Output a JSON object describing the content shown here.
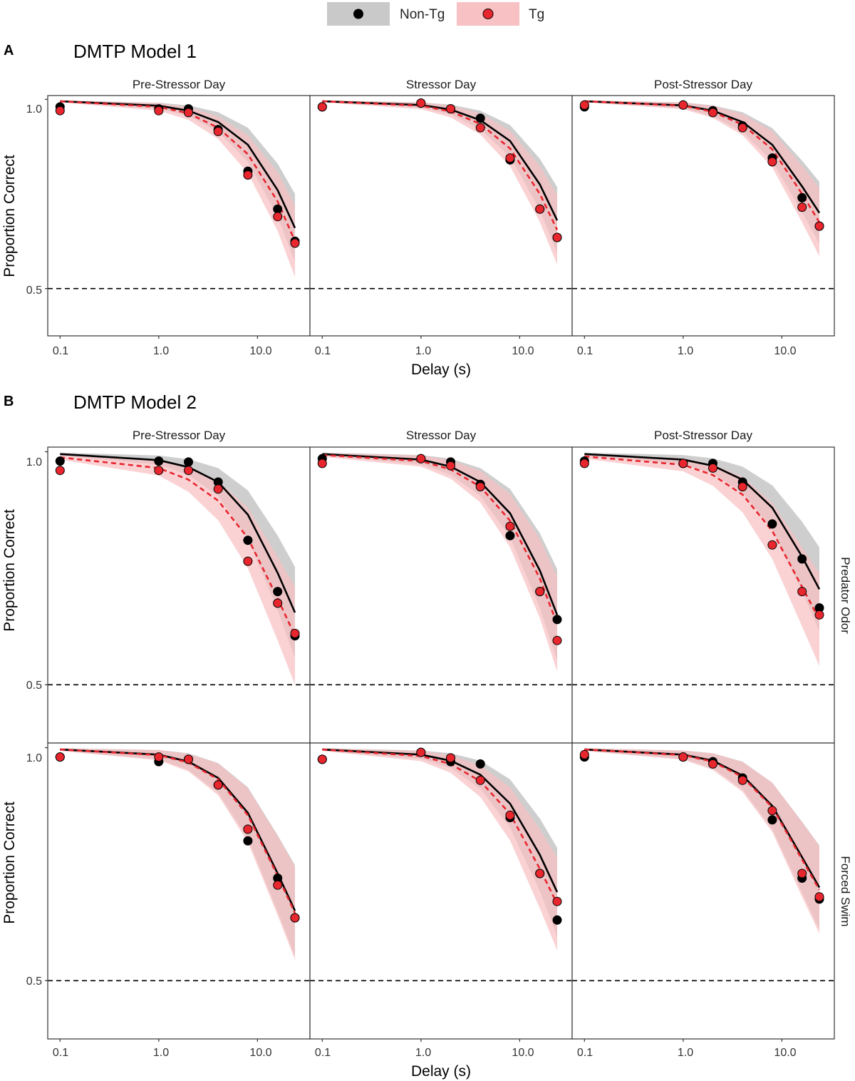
{
  "legend": {
    "items": [
      {
        "label": "Non-Tg",
        "point_color": "#000000",
        "band_color": "#c9c9c9",
        "line_color": "#000000"
      },
      {
        "label": "Tg",
        "point_color": "#e8262e",
        "band_color": "#f8c1c3",
        "line_color": "#e8262e"
      }
    ]
  },
  "panels": [
    {
      "letter": "A",
      "title": "DMTP Model 1"
    },
    {
      "letter": "B",
      "title": "DMTP Model 2"
    }
  ],
  "column_labels": [
    "Pre-Stressor Day",
    "Stressor Day",
    "Post-Stressor Day"
  ],
  "row_labels": [
    "Predator Odor",
    "Forced Swim"
  ],
  "axes": {
    "xlabel": "Delay (s)",
    "ylabel": "Proportion Correct",
    "xscale": "log10",
    "xlim": [
      0.075,
      34
    ],
    "x_ticks": [
      0.1,
      1.0,
      10.0
    ],
    "x_tick_labels": [
      "0.1",
      "1.0",
      "10.0"
    ],
    "ylim": [
      0.375,
      1.01
    ],
    "y_ticks": [
      0.5,
      1.0
    ],
    "y_tick_labels": [
      "0.5",
      "1.0"
    ],
    "chance_level": 0.5
  },
  "chart_data": [
    {
      "type": "scatter",
      "panel": "A",
      "row": "",
      "column": "Pre-Stressor Day",
      "delays": [
        0.1,
        1,
        2,
        4,
        8,
        16,
        24
      ],
      "series": [
        {
          "name": "Non-Tg",
          "points": [
            0.98,
            0.975,
            0.975,
            0.92,
            0.81,
            0.71,
            0.625
          ],
          "fit": [
            0.995,
            0.983,
            0.97,
            0.94,
            0.88,
            0.76,
            0.66
          ],
          "band": [
            0.002,
            0.008,
            0.014,
            0.026,
            0.045,
            0.07,
            0.09
          ]
        },
        {
          "name": "Tg",
          "points": [
            0.97,
            0.97,
            0.965,
            0.915,
            0.8,
            0.69,
            0.62
          ],
          "fit": [
            0.995,
            0.98,
            0.963,
            0.925,
            0.855,
            0.73,
            0.625
          ],
          "band": [
            0.003,
            0.01,
            0.017,
            0.03,
            0.05,
            0.078,
            0.095
          ]
        }
      ]
    },
    {
      "type": "scatter",
      "panel": "A",
      "row": "",
      "column": "Stressor Day",
      "delays": [
        0.1,
        1,
        2,
        4,
        8,
        16,
        24
      ],
      "series": [
        {
          "name": "Non-Tg",
          "points": [
            0.98,
            0.99,
            0.975,
            0.95,
            0.84,
            0.71,
            0.635
          ],
          "fit": [
            0.995,
            0.985,
            0.973,
            0.945,
            0.89,
            0.775,
            0.68
          ],
          "band": [
            0.002,
            0.007,
            0.013,
            0.025,
            0.042,
            0.068,
            0.088
          ]
        },
        {
          "name": "Tg",
          "points": [
            0.98,
            0.99,
            0.975,
            0.925,
            0.845,
            0.71,
            0.635
          ],
          "fit": [
            0.995,
            0.983,
            0.968,
            0.935,
            0.87,
            0.75,
            0.655
          ],
          "band": [
            0.003,
            0.009,
            0.016,
            0.028,
            0.047,
            0.074,
            0.092
          ]
        }
      ]
    },
    {
      "type": "scatter",
      "panel": "A",
      "row": "",
      "column": "Post-Stressor Day",
      "delays": [
        0.1,
        1,
        2,
        4,
        8,
        16,
        24
      ],
      "series": [
        {
          "name": "Non-Tg",
          "points": [
            0.98,
            0.985,
            0.97,
            0.93,
            0.845,
            0.74,
            0.665
          ],
          "fit": [
            0.995,
            0.984,
            0.97,
            0.94,
            0.88,
            0.77,
            0.7
          ],
          "band": [
            0.002,
            0.008,
            0.014,
            0.026,
            0.044,
            0.068,
            0.082
          ]
        },
        {
          "name": "Tg",
          "points": [
            0.985,
            0.985,
            0.965,
            0.925,
            0.835,
            0.715,
            0.665
          ],
          "fit": [
            0.995,
            0.983,
            0.967,
            0.933,
            0.868,
            0.75,
            0.675
          ],
          "band": [
            0.003,
            0.009,
            0.016,
            0.028,
            0.048,
            0.075,
            0.09
          ]
        }
      ]
    },
    {
      "type": "scatter",
      "panel": "B",
      "row": "Predator Odor",
      "column": "Pre-Stressor Day",
      "delays": [
        0.1,
        1,
        2,
        4,
        8,
        16,
        24
      ],
      "series": [
        {
          "name": "Non-Tg",
          "points": [
            0.98,
            0.98,
            0.978,
            0.935,
            0.81,
            0.7,
            0.605
          ],
          "fit": [
            0.995,
            0.982,
            0.967,
            0.935,
            0.865,
            0.74,
            0.655
          ],
          "band": [
            0.003,
            0.01,
            0.017,
            0.03,
            0.052,
            0.08,
            0.098
          ]
        },
        {
          "name": "Tg",
          "points": [
            0.96,
            0.96,
            0.96,
            0.92,
            0.765,
            0.675,
            0.61
          ],
          "fit": [
            0.988,
            0.965,
            0.94,
            0.895,
            0.815,
            0.685,
            0.605
          ],
          "band": [
            0.005,
            0.016,
            0.026,
            0.042,
            0.065,
            0.09,
            0.105
          ]
        }
      ]
    },
    {
      "type": "scatter",
      "panel": "B",
      "row": "Predator Odor",
      "column": "Stressor Day",
      "delays": [
        0.1,
        1,
        2,
        4,
        8,
        16,
        24
      ],
      "series": [
        {
          "name": "Non-Tg",
          "points": [
            0.985,
            0.985,
            0.978,
            0.93,
            0.82,
            0.7,
            0.64
          ],
          "fit": [
            0.995,
            0.983,
            0.968,
            0.935,
            0.868,
            0.745,
            0.65
          ],
          "band": [
            0.003,
            0.01,
            0.017,
            0.03,
            0.052,
            0.08,
            0.098
          ]
        },
        {
          "name": "Tg",
          "points": [
            0.975,
            0.985,
            0.97,
            0.925,
            0.84,
            0.7,
            0.595
          ],
          "fit": [
            0.993,
            0.98,
            0.962,
            0.925,
            0.852,
            0.728,
            0.63
          ],
          "band": [
            0.004,
            0.012,
            0.02,
            0.034,
            0.057,
            0.085,
            0.102
          ]
        }
      ]
    },
    {
      "type": "scatter",
      "panel": "B",
      "row": "Predator Odor",
      "column": "Post-Stressor Day",
      "delays": [
        0.1,
        1,
        2,
        4,
        8,
        16,
        24
      ],
      "series": [
        {
          "name": "Non-Tg",
          "points": [
            0.98,
            0.975,
            0.975,
            0.935,
            0.845,
            0.77,
            0.665
          ],
          "fit": [
            0.995,
            0.983,
            0.97,
            0.94,
            0.88,
            0.775,
            0.705
          ],
          "band": [
            0.003,
            0.01,
            0.016,
            0.028,
            0.048,
            0.075,
            0.09
          ]
        },
        {
          "name": "Tg",
          "points": [
            0.975,
            0.975,
            0.965,
            0.925,
            0.8,
            0.7,
            0.65
          ],
          "fit": [
            0.99,
            0.972,
            0.95,
            0.908,
            0.83,
            0.71,
            0.64
          ],
          "band": [
            0.005,
            0.014,
            0.023,
            0.038,
            0.06,
            0.085,
            0.1
          ]
        }
      ]
    },
    {
      "type": "scatter",
      "panel": "B",
      "row": "Forced Swim",
      "column": "Pre-Stressor Day",
      "delays": [
        0.1,
        1,
        2,
        4,
        8,
        16,
        24
      ],
      "series": [
        {
          "name": "Non-Tg",
          "points": [
            0.98,
            0.97,
            0.975,
            0.92,
            0.8,
            0.72,
            0.635
          ],
          "fit": [
            0.996,
            0.985,
            0.97,
            0.935,
            0.86,
            0.73,
            0.65
          ],
          "band": [
            0.003,
            0.01,
            0.018,
            0.032,
            0.055,
            0.082,
            0.098
          ]
        },
        {
          "name": "Tg",
          "points": [
            0.98,
            0.98,
            0.975,
            0.92,
            0.825,
            0.705,
            0.635
          ],
          "fit": [
            0.996,
            0.984,
            0.968,
            0.932,
            0.855,
            0.725,
            0.645
          ],
          "band": [
            0.003,
            0.011,
            0.019,
            0.034,
            0.058,
            0.085,
            0.1
          ]
        }
      ]
    },
    {
      "type": "scatter",
      "panel": "B",
      "row": "Forced Swim",
      "column": "Stressor Day",
      "delays": [
        0.1,
        1,
        2,
        4,
        8,
        16,
        24
      ],
      "series": [
        {
          "name": "Non-Tg",
          "points": [
            0.975,
            0.99,
            0.97,
            0.965,
            0.85,
            0.73,
            0.63
          ],
          "fit": [
            0.996,
            0.985,
            0.972,
            0.942,
            0.88,
            0.77,
            0.69
          ],
          "band": [
            0.003,
            0.009,
            0.016,
            0.03,
            0.052,
            0.078,
            0.095
          ]
        },
        {
          "name": "Tg",
          "points": [
            0.975,
            0.99,
            0.978,
            0.93,
            0.855,
            0.73,
            0.67
          ],
          "fit": [
            0.996,
            0.982,
            0.965,
            0.928,
            0.858,
            0.74,
            0.665
          ],
          "band": [
            0.003,
            0.011,
            0.019,
            0.034,
            0.057,
            0.085,
            0.1
          ]
        }
      ]
    },
    {
      "type": "scatter",
      "panel": "B",
      "row": "Forced Swim",
      "column": "Post-Stressor Day",
      "delays": [
        0.1,
        1,
        2,
        4,
        8,
        16,
        24
      ],
      "series": [
        {
          "name": "Non-Tg",
          "points": [
            0.98,
            0.98,
            0.97,
            0.935,
            0.845,
            0.72,
            0.675
          ],
          "fit": [
            0.996,
            0.985,
            0.972,
            0.94,
            0.875,
            0.765,
            0.7
          ],
          "band": [
            0.003,
            0.009,
            0.016,
            0.03,
            0.05,
            0.076,
            0.09
          ]
        },
        {
          "name": "Tg",
          "points": [
            0.985,
            0.98,
            0.965,
            0.93,
            0.865,
            0.73,
            0.68
          ],
          "fit": [
            0.996,
            0.984,
            0.97,
            0.937,
            0.872,
            0.76,
            0.695
          ],
          "band": [
            0.003,
            0.01,
            0.018,
            0.032,
            0.053,
            0.08,
            0.094
          ]
        }
      ]
    }
  ]
}
